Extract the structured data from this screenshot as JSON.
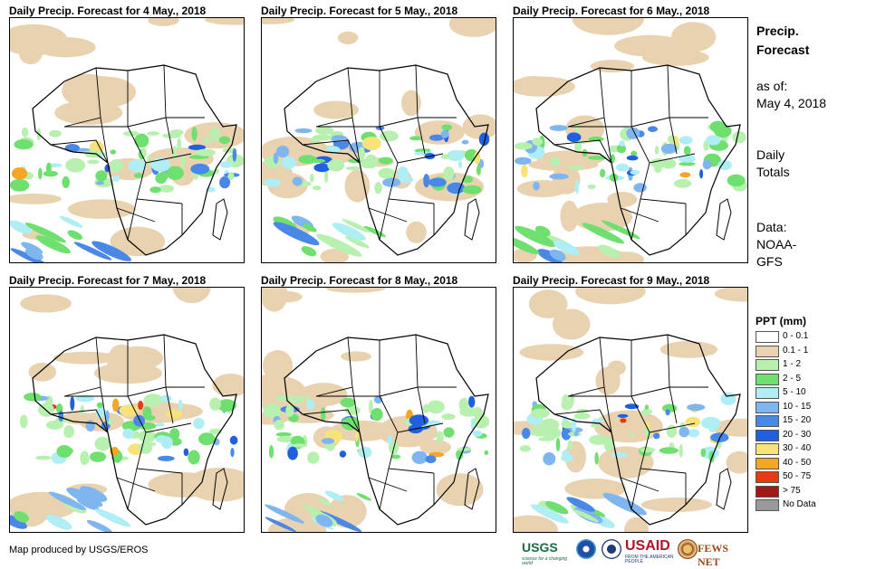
{
  "panels": [
    {
      "title": "Daily Precip. Forecast for 4 May., 2018"
    },
    {
      "title": "Daily Precip. Forecast for 5 May., 2018"
    },
    {
      "title": "Daily Precip. Forecast for 6 May., 2018"
    },
    {
      "title": "Daily Precip. Forecast for 7 May., 2018"
    },
    {
      "title": "Daily Precip. Forecast for 8 May., 2018"
    },
    {
      "title": "Daily Precip. Forecast for 9 May., 2018"
    }
  ],
  "side": {
    "title_line1": "Precip.",
    "title_line2": "Forecast",
    "asof_label": "as of:",
    "asof_date": "May 4, 2018",
    "totals_line1": "Daily",
    "totals_line2": "Totals",
    "data_line1": "Data:",
    "data_line2": "NOAA-",
    "data_line3": "GFS"
  },
  "legend": {
    "title": "PPT (mm)",
    "items": [
      {
        "label": "0 - 0.1",
        "color": "#ffffff"
      },
      {
        "label": "0.1 - 1",
        "color": "#e8d2b0"
      },
      {
        "label": "1 - 2",
        "color": "#b8f0b0"
      },
      {
        "label": "2 - 5",
        "color": "#6fe06f"
      },
      {
        "label": "5 - 10",
        "color": "#b0eef5"
      },
      {
        "label": "10 - 15",
        "color": "#7fb6f0"
      },
      {
        "label": "15 - 20",
        "color": "#4a88e8"
      },
      {
        "label": "20 - 30",
        "color": "#1f5fe0"
      },
      {
        "label": "30 - 40",
        "color": "#f8e27a"
      },
      {
        "label": "40 - 50",
        "color": "#f5a623"
      },
      {
        "label": "50 - 75",
        "color": "#e83a10"
      },
      {
        "label": "> 75",
        "color": "#a01818"
      },
      {
        "label": "No Data",
        "color": "#999999"
      }
    ]
  },
  "footer": {
    "credit": "Map produced by USGS/EROS",
    "usgs": "USGS",
    "usgs_tagline": "science for a changing world",
    "usaid": "USAID",
    "usaid_tagline": "FROM THE AMERICAN PEOPLE",
    "fews": "FEWS NET"
  }
}
